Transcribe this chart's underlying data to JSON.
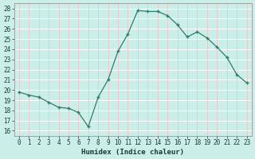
{
  "x": [
    0,
    1,
    2,
    3,
    4,
    5,
    6,
    7,
    8,
    9,
    10,
    11,
    12,
    13,
    14,
    15,
    16,
    17,
    18,
    19,
    20,
    21,
    22,
    23
  ],
  "y": [
    19.8,
    19.5,
    19.3,
    18.8,
    18.3,
    18.2,
    17.8,
    16.4,
    19.3,
    21.0,
    23.8,
    25.5,
    27.8,
    27.7,
    27.7,
    27.3,
    26.4,
    25.2,
    25.7,
    25.1,
    24.2,
    23.2,
    21.5,
    20.7
  ],
  "line_color": "#2e7d6e",
  "marker_color": "#2e7d6e",
  "bg_color": "#cceee8",
  "grid_major_color_h": "#ffffff",
  "grid_major_color_v": "#f0c0c0",
  "xlabel": "Humidex (Indice chaleur)",
  "ylim_min": 15.5,
  "ylim_max": 28.5,
  "xlim_min": -0.5,
  "xlim_max": 23.5,
  "yticks": [
    16,
    17,
    18,
    19,
    20,
    21,
    22,
    23,
    24,
    25,
    26,
    27,
    28
  ],
  "xticks": [
    0,
    1,
    2,
    3,
    4,
    5,
    6,
    7,
    8,
    9,
    10,
    11,
    12,
    13,
    14,
    15,
    16,
    17,
    18,
    19,
    20,
    21,
    22,
    23
  ],
  "tick_fontsize": 5.5,
  "xlabel_fontsize": 6.5
}
